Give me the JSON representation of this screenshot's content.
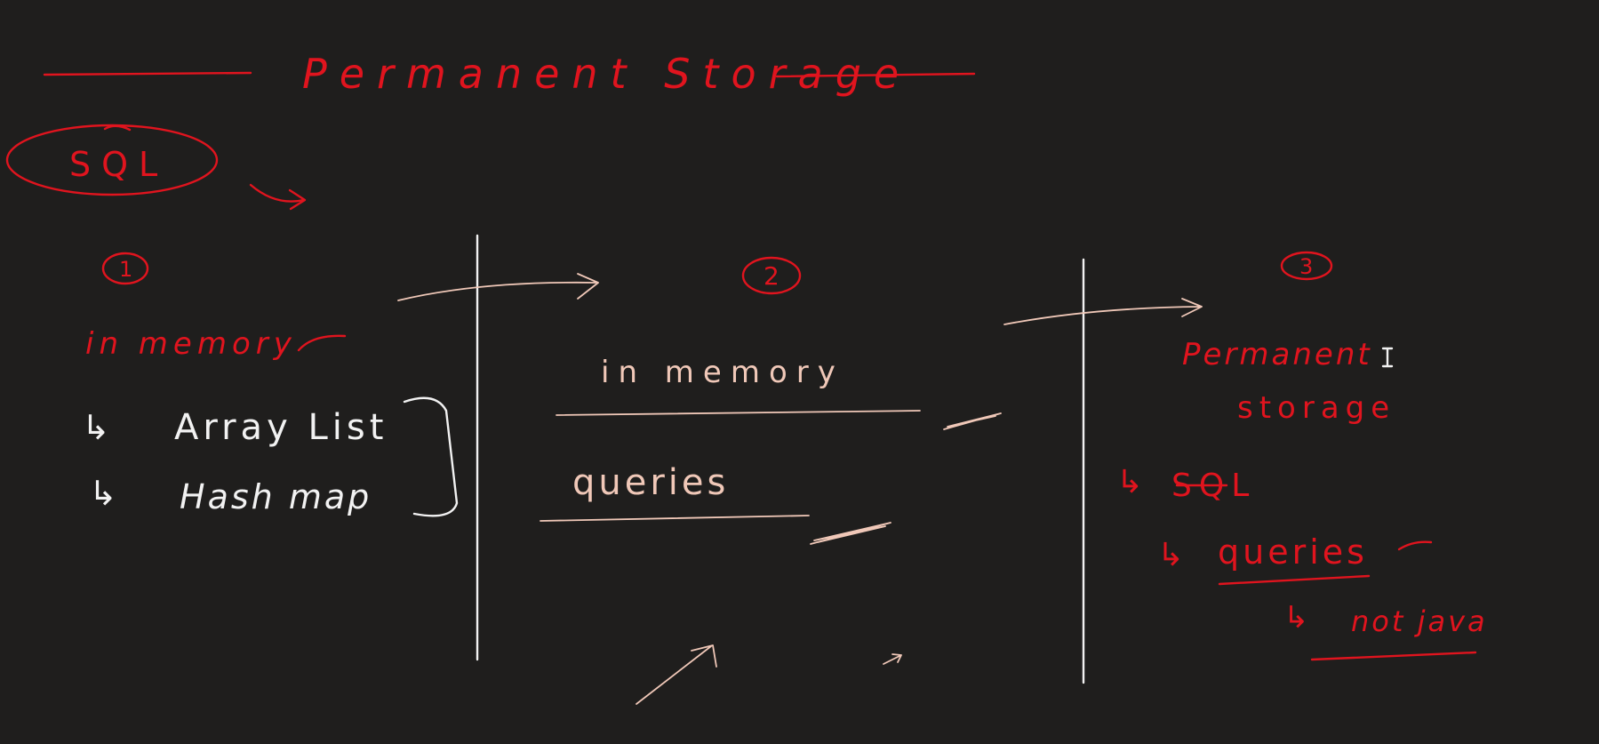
{
  "colors": {
    "background": "#1f1e1d",
    "ink_red": "#e0141e",
    "ink_white": "#f2f2f2",
    "ink_peach": "#f0c8b8"
  },
  "title": "Permanent Storage",
  "sql_bubble": "SQL",
  "columns": [
    {
      "number": "1",
      "heading": "in memory",
      "items": [
        "Array List",
        "Hash map"
      ]
    },
    {
      "number": "2",
      "heading": "in memory",
      "items": [
        "queries"
      ]
    },
    {
      "number": "3",
      "heading_line1": "Permanent",
      "heading_line2": "storage",
      "items": [
        "SQL",
        "queries",
        "not java"
      ]
    }
  ],
  "arrow_glyph": "↳",
  "cursor_icon": "text-cursor-icon"
}
